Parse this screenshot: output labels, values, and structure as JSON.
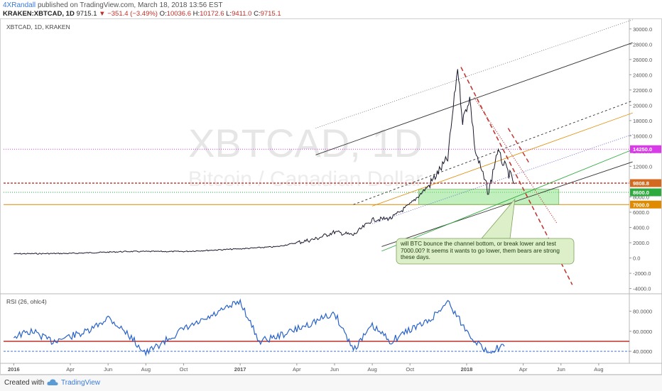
{
  "header": {
    "author": "4XRandall",
    "published": "published on TradingView.com, March 18, 2018 13:56 EST",
    "symbol": "KRAKEN:XBTCAD, 1D",
    "last": "9715.1",
    "change": "−351.4 (−3.49%)",
    "open_label": "O:",
    "open": "10036.6",
    "high_label": "H:",
    "high": "10172.6",
    "low_label": "L:",
    "low": "9411.0",
    "close_label": "C:",
    "close": "9715.1"
  },
  "chart_data": [
    {
      "type": "line",
      "title": "XBTCAD, 1D, KRAKEN",
      "watermark": "XBTCAD, 1D",
      "watermark_sub": "Bitcoin / Canadian Dollar",
      "x_ticks": [
        "2016",
        "Apr",
        "Jun",
        "Aug",
        "Oct",
        "2017",
        "Apr",
        "Jun",
        "Aug",
        "Oct",
        "2018",
        "Apr",
        "Jun",
        "Aug"
      ],
      "y_ticks": [
        "30000.0",
        "28000.0",
        "26000.0",
        "24000.0",
        "22000.0",
        "20000.0",
        "18000.0",
        "16000.0",
        "14000.0",
        "12000.0",
        "10000.0",
        "8000.0",
        "6000.0",
        "4000.0",
        "2000.0",
        "0.0",
        "-2000.0",
        "-4000.0"
      ],
      "ylim": [
        -4500,
        31000
      ],
      "series": [
        {
          "color": "#1a1a2e",
          "x": [
            "2016-01",
            "2016-04",
            "2016-07",
            "2016-10",
            "2017-01",
            "2017-03",
            "2017-05",
            "2017-06",
            "2017-07",
            "2017-08",
            "2017-09",
            "2017-10",
            "2017-11",
            "2017-12-01",
            "2017-12-17",
            "2017-12-25",
            "2018-01-06",
            "2018-01-15",
            "2018-02-06",
            "2018-02-20",
            "2018-03-05",
            "2018-03-18"
          ],
          "y": [
            550,
            600,
            850,
            850,
            1200,
            1500,
            2500,
            3400,
            3000,
            5000,
            5200,
            7000,
            9500,
            13000,
            25000,
            18000,
            21000,
            14000,
            8500,
            14000,
            11500,
            9715
          ]
        }
      ],
      "price_labels": [
        {
          "value": "14250.0",
          "y": 14250,
          "color": "#d93be8"
        },
        {
          "value": "9808.8",
          "y": 9808.8,
          "color": "#d2691e"
        },
        {
          "value": "8600.0",
          "y": 8600,
          "color": "#2eaa3e"
        },
        {
          "value": "7000.0",
          "y": 7000,
          "color": "#e08a00"
        }
      ],
      "annotation": "will BTC bounce the channel bottom, or break lower and test 7000.00?    It seems it wants to go lower, them bears are strong these days."
    },
    {
      "type": "line",
      "title": "RSI (26, ohlc4)",
      "y_ticks": [
        "80.0000",
        "60.0000",
        "40.0000"
      ],
      "ylim": [
        28,
        96
      ],
      "levels": [
        50,
        40
      ],
      "series": [
        {
          "color": "#2962c8",
          "x": [
            "2016-01",
            "2016-02",
            "2016-03",
            "2016-04",
            "2016-05",
            "2016-06",
            "2016-07",
            "2016-08",
            "2016-09",
            "2016-10",
            "2016-11",
            "2016-12",
            "2017-01",
            "2017-02",
            "2017-03",
            "2017-04",
            "2017-05",
            "2017-06",
            "2017-07",
            "2017-08",
            "2017-09",
            "2017-10",
            "2017-11",
            "2017-12",
            "2018-01",
            "2018-02",
            "2018-03"
          ],
          "y": [
            55,
            60,
            50,
            55,
            60,
            74,
            58,
            38,
            50,
            62,
            70,
            80,
            90,
            50,
            55,
            62,
            70,
            78,
            42,
            65,
            50,
            62,
            70,
            90,
            60,
            40,
            45
          ]
        }
      ]
    }
  ],
  "footer": {
    "created_with": "Created with",
    "brand": "TradingView"
  }
}
